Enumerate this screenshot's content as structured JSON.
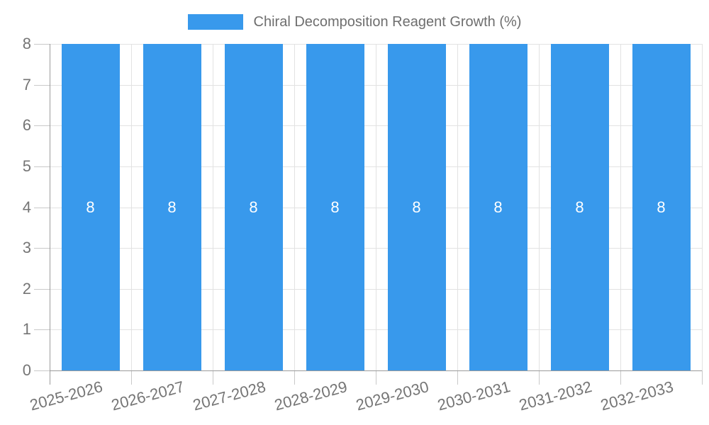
{
  "legend": {
    "swatch_icon": "series-color-swatch"
  },
  "chart_data": {
    "type": "bar",
    "title": "Chiral Decomposition Reagent Growth (%)",
    "categories": [
      "2025-2026",
      "2026-2027",
      "2027-2028",
      "2028-2029",
      "2029-2030",
      "2030-2031",
      "2031-2032",
      "2032-2033"
    ],
    "values": [
      8,
      8,
      8,
      8,
      8,
      8,
      8,
      8
    ],
    "series": [
      {
        "name": "Chiral Decomposition Reagent Growth (%)",
        "values": [
          8,
          8,
          8,
          8,
          8,
          8,
          8,
          8
        ]
      }
    ],
    "xlabel": "",
    "ylabel": "",
    "ylim": [
      0,
      8
    ],
    "yticks": [
      0,
      1,
      2,
      3,
      4,
      5,
      6,
      7,
      8
    ],
    "grid": true,
    "legend_position": "top",
    "bar_labels_shown": true,
    "colors": {
      "bar": "#3899EC",
      "bar_label": "#FFFFFF",
      "axis_line": "#9B9B9B",
      "grid_line": "#E2E2E2",
      "tick_mark": "#C9C9C9",
      "tick_text": "#757575",
      "legend_text": "#6E6E6E",
      "background": "#FFFFFF"
    }
  }
}
